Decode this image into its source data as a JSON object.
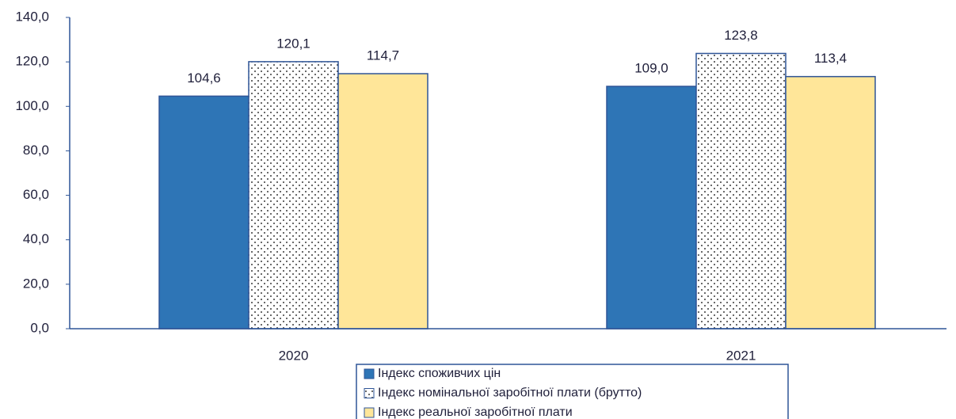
{
  "chart_data": {
    "type": "bar",
    "categories": [
      "2020",
      "2021"
    ],
    "series": [
      {
        "name": "Індекс споживчих цін",
        "color": "#2e75b6",
        "values": [
          104.6,
          109.0
        ],
        "value_labels": [
          "104,6",
          "109,0"
        ]
      },
      {
        "name": "Індекс номінальної заробітної плати (брутто)",
        "color": "#ffffff",
        "pattern": "dots",
        "values": [
          120.1,
          123.8
        ],
        "value_labels": [
          "120,1",
          "123,8"
        ]
      },
      {
        "name": "Індекс реальної заробітної плати",
        "color": "#ffe699",
        "values": [
          114.7,
          113.4
        ],
        "value_labels": [
          "114,7",
          "113,4"
        ]
      }
    ],
    "edge_color": "#2f5597",
    "ylim": [
      0,
      140
    ],
    "yticks": [
      {
        "value": 0,
        "label": "0,0"
      },
      {
        "value": 20,
        "label": "20,0"
      },
      {
        "value": 40,
        "label": "40,0"
      },
      {
        "value": 60,
        "label": "60,0"
      },
      {
        "value": 80,
        "label": "80,0"
      },
      {
        "value": 100,
        "label": "100,0"
      },
      {
        "value": 120,
        "label": "120,0"
      },
      {
        "value": 140,
        "label": "140,0"
      }
    ],
    "grid": false,
    "legend": "bottom"
  }
}
